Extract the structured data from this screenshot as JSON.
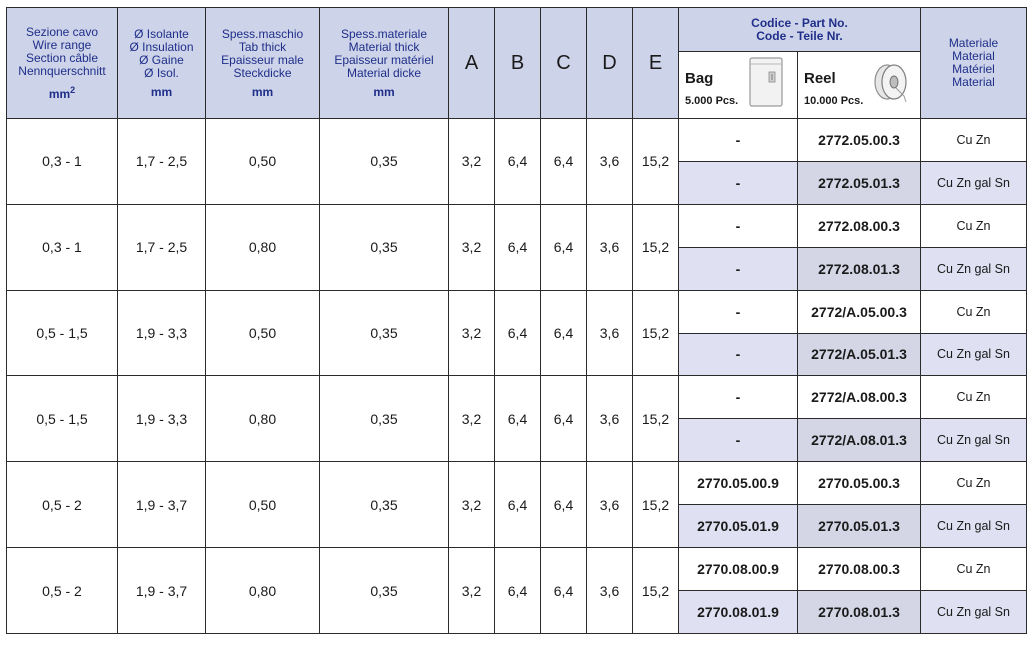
{
  "header": {
    "wire_range": [
      "Sezione cavo",
      "Wire range",
      "Section câble",
      "Nennquerschnitt"
    ],
    "wire_range_unit": "mm",
    "wire_range_unit_sup": "2",
    "insulation": [
      "Ø Isolante",
      "Ø Insulation",
      "Ø Gaine",
      "Ø Isol."
    ],
    "insulation_unit": "mm",
    "tab_thick": [
      "Spess.maschio",
      "Tab thick",
      "Epaisseur male",
      "Steckdicke"
    ],
    "tab_thick_unit": "mm",
    "material_thick": [
      "Spess.materiale",
      "Material thick",
      "Epaisseur matériel",
      "Material dicke"
    ],
    "material_thick_unit": "mm",
    "dims": [
      "A",
      "B",
      "C",
      "D",
      "E"
    ],
    "code_title": [
      "Codice - Part No.",
      "Code - Teile Nr."
    ],
    "bag": {
      "name": "Bag",
      "qty": "5.000 Pcs.",
      "icon": "bag-icon"
    },
    "reel": {
      "name": "Reel",
      "qty": "10.000 Pcs.",
      "icon": "reel-icon"
    },
    "material": [
      "Materiale",
      "Material",
      "Matériel",
      "Material"
    ]
  },
  "groups": [
    {
      "wire": "0,3 - 1",
      "ins": "1,7 - 2,5",
      "tab": "0,50",
      "mat_thick": "0,35",
      "A": "3,2",
      "B": "6,4",
      "C": "6,4",
      "D": "3,6",
      "E": "15,2",
      "rows": [
        {
          "bag": "-",
          "reel": "2772.05.00.3",
          "material": "Cu Zn"
        },
        {
          "bag": "-",
          "reel": "2772.05.01.3",
          "material": "Cu Zn gal Sn"
        }
      ]
    },
    {
      "wire": "0,3 - 1",
      "ins": "1,7 - 2,5",
      "tab": "0,80",
      "mat_thick": "0,35",
      "A": "3,2",
      "B": "6,4",
      "C": "6,4",
      "D": "3,6",
      "E": "15,2",
      "rows": [
        {
          "bag": "-",
          "reel": "2772.08.00.3",
          "material": "Cu Zn"
        },
        {
          "bag": "-",
          "reel": "2772.08.01.3",
          "material": "Cu Zn gal Sn"
        }
      ]
    },
    {
      "wire": "0,5 - 1,5",
      "ins": "1,9 - 3,3",
      "tab": "0,50",
      "mat_thick": "0,35",
      "A": "3,2",
      "B": "6,4",
      "C": "6,4",
      "D": "3,6",
      "E": "15,2",
      "rows": [
        {
          "bag": "-",
          "reel": "2772/A.05.00.3",
          "material": "Cu Zn"
        },
        {
          "bag": "-",
          "reel": "2772/A.05.01.3",
          "material": "Cu Zn gal Sn"
        }
      ]
    },
    {
      "wire": "0,5 - 1,5",
      "ins": "1,9 - 3,3",
      "tab": "0,80",
      "mat_thick": "0,35",
      "A": "3,2",
      "B": "6,4",
      "C": "6,4",
      "D": "3,6",
      "E": "15,2",
      "rows": [
        {
          "bag": "-",
          "reel": "2772/A.08.00.3",
          "material": "Cu Zn"
        },
        {
          "bag": "-",
          "reel": "2772/A.08.01.3",
          "material": "Cu Zn gal Sn"
        }
      ]
    },
    {
      "wire": "0,5 - 2",
      "ins": "1,9 - 3,7",
      "tab": "0,50",
      "mat_thick": "0,35",
      "A": "3,2",
      "B": "6,4",
      "C": "6,4",
      "D": "3,6",
      "E": "15,2",
      "rows": [
        {
          "bag": "2770.05.00.9",
          "reel": "2770.05.00.3",
          "material": "Cu Zn"
        },
        {
          "bag": "2770.05.01.9",
          "reel": "2770.05.01.3",
          "material": "Cu Zn gal Sn"
        }
      ]
    },
    {
      "wire": "0,5 - 2",
      "ins": "1,9 - 3,7",
      "tab": "0,80",
      "mat_thick": "0,35",
      "A": "3,2",
      "B": "6,4",
      "C": "6,4",
      "D": "3,6",
      "E": "15,2",
      "rows": [
        {
          "bag": "2770.08.00.9",
          "reel": "2770.08.00.3",
          "material": "Cu Zn"
        },
        {
          "bag": "2770.08.01.9",
          "reel": "2770.08.01.3",
          "material": "Cu Zn gal Sn"
        }
      ]
    }
  ]
}
